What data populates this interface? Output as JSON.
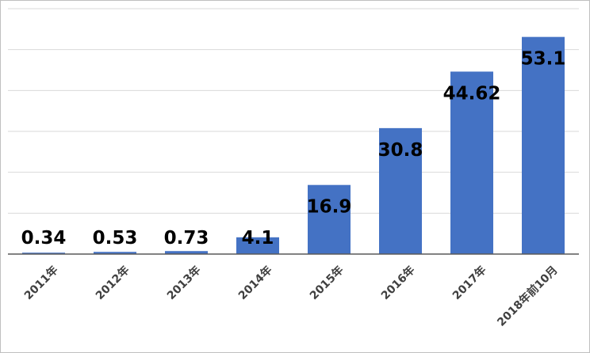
{
  "chart_data": {
    "type": "bar",
    "title": "",
    "xlabel": "",
    "ylabel": "",
    "categories": [
      "2011年",
      "2012年",
      "2013年",
      "2014年",
      "2015年",
      "2016年",
      "2017年",
      "2018年前10月"
    ],
    "values": [
      0.34,
      0.53,
      0.73,
      4.1,
      16.9,
      30.8,
      44.62,
      53.1
    ],
    "data_labels": [
      "0.34",
      "0.53",
      "0.73",
      "4.1",
      "16.9",
      "30.8",
      "44.62",
      "53.1"
    ],
    "ylim": [
      0,
      60
    ],
    "y_gridline_step": 10,
    "y_tick_labels_shown": false,
    "grid": true,
    "legend": "none",
    "bar_color": "#4472C4",
    "grid_color": "#D9D9D9"
  }
}
